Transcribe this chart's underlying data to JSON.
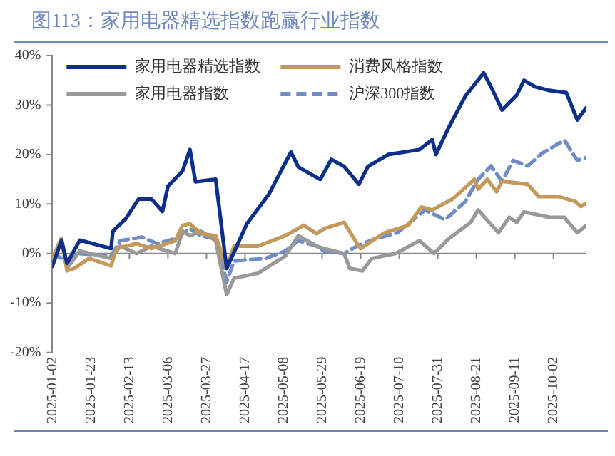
{
  "chart_data": {
    "type": "line",
    "title": "图113：家用电器精选指数跑赢行业指数",
    "xlim": [
      "2025-01-02",
      "2025-10-20"
    ],
    "xticks": [
      "2025-01-02",
      "2025-01-23",
      "2025-02-13",
      "2025-03-06",
      "2025-03-27",
      "2025-04-17",
      "2025-05-08",
      "2025-05-29",
      "2025-06-19",
      "2025-07-10",
      "2025-07-31",
      "2025-08-21",
      "2025-09-11",
      "2025-10-02"
    ],
    "ylim": [
      -20,
      40
    ],
    "yticks": [
      {
        "value": -20,
        "label": "-20%"
      },
      {
        "value": -10,
        "label": "-10%"
      },
      {
        "value": 0,
        "label": "0%"
      },
      {
        "value": 10,
        "label": "10%"
      },
      {
        "value": 20,
        "label": "20%"
      },
      {
        "value": 30,
        "label": "30%"
      },
      {
        "value": 40,
        "label": "40%"
      }
    ],
    "legend": "top left",
    "marker": "none",
    "series": [
      {
        "name": "家用电器精选指数",
        "color": "#0b2f8a",
        "line_style": "solid",
        "x": [
          "2025-01-02",
          "2025-01-07",
          "2025-01-10",
          "2025-01-17",
          "2025-02-03",
          "2025-02-04",
          "2025-02-11",
          "2025-02-18",
          "2025-02-25",
          "2025-03-03",
          "2025-03-06",
          "2025-03-14",
          "2025-03-18",
          "2025-03-21",
          "2025-04-01",
          "2025-04-07",
          "2025-04-18",
          "2025-04-30",
          "2025-05-12",
          "2025-05-16",
          "2025-05-23",
          "2025-05-28",
          "2025-06-03",
          "2025-06-10",
          "2025-06-18",
          "2025-06-23",
          "2025-07-04",
          "2025-07-21",
          "2025-07-28",
          "2025-07-30",
          "2025-08-06",
          "2025-08-15",
          "2025-08-25",
          "2025-08-29",
          "2025-09-04",
          "2025-09-12",
          "2025-09-16",
          "2025-09-22",
          "2025-09-29",
          "2025-10-09",
          "2025-10-15",
          "2025-10-20"
        ],
        "values": [
          -2.6,
          2.7,
          -2,
          2.7,
          1,
          4.5,
          7,
          11,
          11,
          8.5,
          13.6,
          16.7,
          21,
          14.5,
          15,
          -3,
          6,
          12,
          20.5,
          17.5,
          16,
          15,
          19,
          17.6,
          14,
          17.6,
          20,
          21,
          23,
          20,
          25.5,
          31.8,
          36.5,
          33.7,
          29,
          32,
          35,
          33.7,
          33,
          32.5,
          27,
          29.5
        ]
      },
      {
        "name": "消费风格指数",
        "color": "#c49a5c",
        "line_style": "solid",
        "x": [
          "2025-01-02",
          "2025-01-07",
          "2025-01-10",
          "2025-01-14",
          "2025-01-22",
          "2025-02-03",
          "2025-02-06",
          "2025-02-17",
          "2025-02-25",
          "2025-03-10",
          "2025-03-14",
          "2025-03-18",
          "2025-03-24",
          "2025-04-01",
          "2025-04-07",
          "2025-04-11",
          "2025-04-24",
          "2025-05-09",
          "2025-05-19",
          "2025-05-26",
          "2025-05-30",
          "2025-06-10",
          "2025-06-17",
          "2025-06-19",
          "2025-07-02",
          "2025-07-15",
          "2025-07-22",
          "2025-07-28",
          "2025-08-08",
          "2025-08-20",
          "2025-08-22",
          "2025-08-27",
          "2025-09-01",
          "2025-09-04",
          "2025-09-18",
          "2025-09-24",
          "2025-10-05",
          "2025-10-14",
          "2025-10-17",
          "2025-10-20"
        ],
        "values": [
          -1,
          3,
          -3.5,
          -3,
          -1,
          -2.5,
          1,
          2,
          1,
          2.6,
          5.7,
          6,
          4,
          3.6,
          -3,
          1.5,
          1.5,
          3.6,
          5.7,
          4,
          5,
          6.3,
          2,
          1,
          4.2,
          5.7,
          9.4,
          8.8,
          11,
          15,
          13,
          15,
          12.5,
          14.6,
          14,
          11.5,
          11.5,
          10.5,
          9.5,
          10.2
        ]
      },
      {
        "name": "家用电器指数",
        "color": "#999999",
        "line_style": "solid",
        "x": [
          "2025-01-02",
          "2025-01-07",
          "2025-01-10",
          "2025-01-17",
          "2025-02-03",
          "2025-02-08",
          "2025-02-17",
          "2025-02-25",
          "2025-03-10",
          "2025-03-14",
          "2025-03-18",
          "2025-03-24",
          "2025-04-01",
          "2025-04-07",
          "2025-04-11",
          "2025-04-24",
          "2025-05-09",
          "2025-05-16",
          "2025-05-26",
          "2025-05-30",
          "2025-06-10",
          "2025-06-13",
          "2025-06-20",
          "2025-06-25",
          "2025-07-08",
          "2025-07-21",
          "2025-07-29",
          "2025-08-06",
          "2025-08-18",
          "2025-08-22",
          "2025-09-02",
          "2025-09-08",
          "2025-09-12",
          "2025-09-16",
          "2025-09-30",
          "2025-10-08",
          "2025-10-15",
          "2025-10-20"
        ],
        "values": [
          -1,
          3,
          -3,
          0.5,
          -1,
          1.5,
          0,
          1.5,
          0,
          4.5,
          3.6,
          4.5,
          2.6,
          -8.3,
          -5,
          -4,
          -0.5,
          3.6,
          1.5,
          1,
          0,
          -3,
          -3.5,
          -1,
          0,
          2.6,
          0,
          3,
          6.3,
          8.8,
          4.2,
          7.3,
          6.3,
          8.4,
          7.3,
          7.3,
          4.2,
          5.7
        ]
      },
      {
        "name": "沪深300指数",
        "color": "#6f8cc8",
        "line_style": "dashed",
        "x": [
          "2025-01-02",
          "2025-01-10",
          "2025-01-17",
          "2025-02-03",
          "2025-02-08",
          "2025-02-20",
          "2025-02-28",
          "2025-03-10",
          "2025-03-18",
          "2025-03-24",
          "2025-04-01",
          "2025-04-07",
          "2025-04-11",
          "2025-04-28",
          "2025-05-09",
          "2025-05-16",
          "2025-05-26",
          "2025-05-30",
          "2025-06-10",
          "2025-06-17",
          "2025-06-27",
          "2025-07-09",
          "2025-07-24",
          "2025-08-04",
          "2025-08-15",
          "2025-08-22",
          "2025-08-29",
          "2025-09-04",
          "2025-09-10",
          "2025-09-18",
          "2025-09-26",
          "2025-10-08",
          "2025-10-15",
          "2025-10-20"
        ],
        "values": [
          0,
          -1.5,
          0,
          -0.5,
          2.6,
          3.3,
          2,
          3,
          5,
          3.6,
          3,
          -5.7,
          -1.5,
          -1,
          0.5,
          2.6,
          1.5,
          0.5,
          0,
          1.5,
          3,
          4.2,
          8.8,
          6.8,
          10.5,
          15,
          17.7,
          14.6,
          18.8,
          17.7,
          20.3,
          22.9,
          18.8,
          19.4
        ]
      }
    ]
  }
}
